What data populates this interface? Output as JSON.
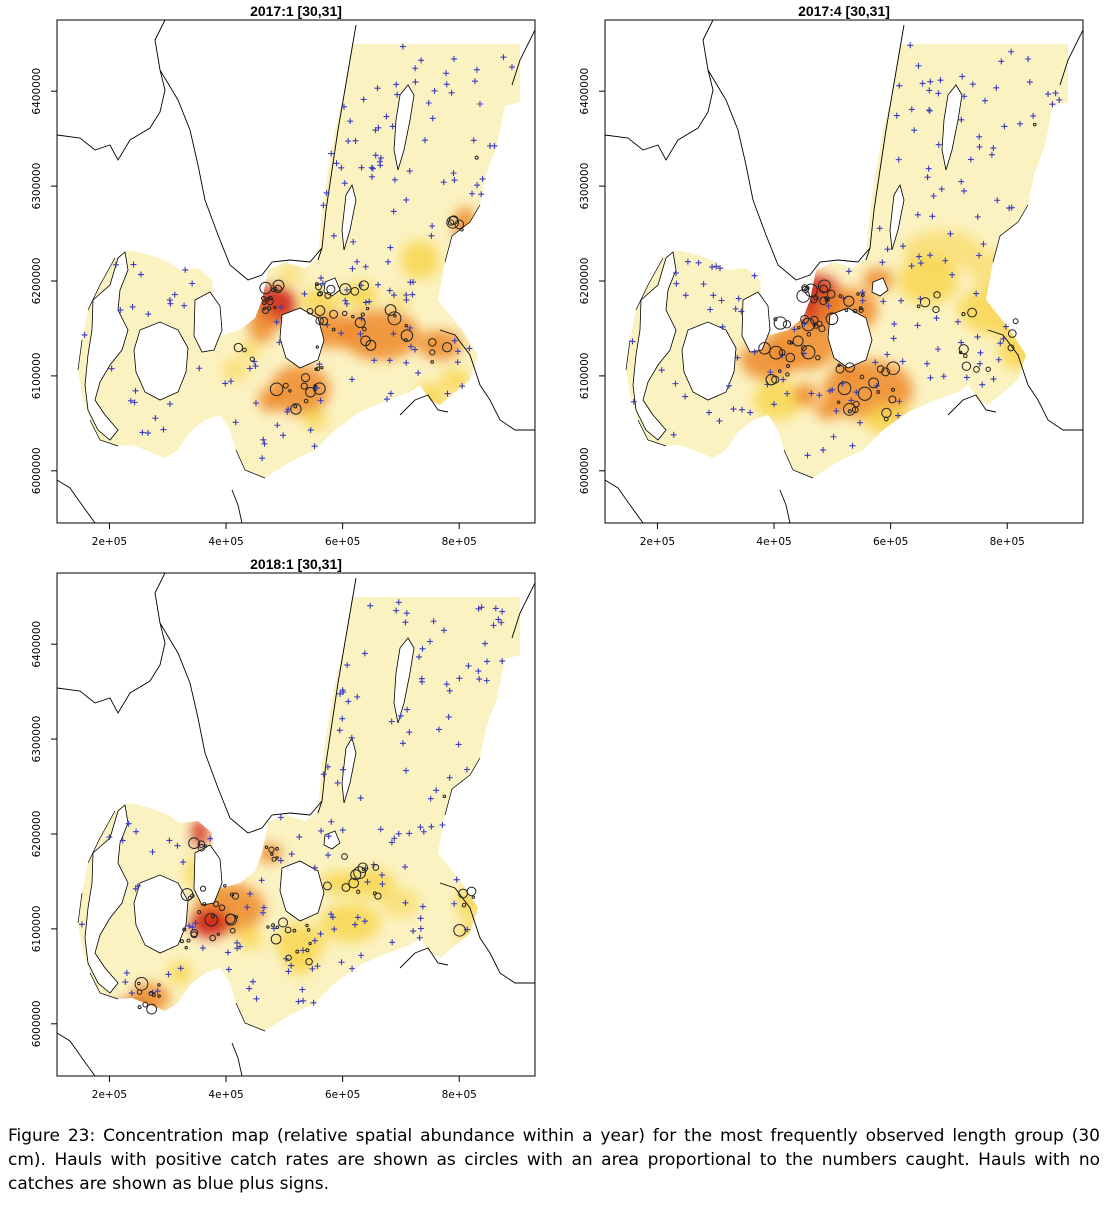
{
  "panels": [
    {
      "title": "2017:1 [30,31]",
      "variant": 0
    },
    {
      "title": "2017:4 [30,31]",
      "variant": 1
    },
    {
      "title": "2018:1 [30,31]",
      "variant": 2
    }
  ],
  "axes": {
    "x_ticks": [
      {
        "value": 200000,
        "label": "2e+05"
      },
      {
        "value": 400000,
        "label": "4e+05"
      },
      {
        "value": 600000,
        "label": "6e+05"
      },
      {
        "value": 800000,
        "label": "8e+05"
      }
    ],
    "y_ticks": [
      {
        "value": 6000000,
        "label": "6000000"
      },
      {
        "value": 6100000,
        "label": "6100000"
      },
      {
        "value": 6200000,
        "label": "6200000"
      },
      {
        "value": 6300000,
        "label": "6300000"
      },
      {
        "value": 6400000,
        "label": "6400000"
      }
    ],
    "x_range": [
      110000,
      930000
    ],
    "y_range": [
      5945000,
      6475000
    ]
  },
  "colors": {
    "low": "#fbf2c2",
    "mid": "#f7d44a",
    "high": "#ef8a2a",
    "peak": "#cf2316",
    "no_catch": "#3a3dbf",
    "positive_catch": "#222222"
  },
  "caption": "Figure 23: Concentration map (relative spatial abundance within a year) for the most frequently observed length group (30 cm). Hauls with positive catch rates are shown as circles with an area proportional to the numbers caught. Hauls with no catches are shown as blue plus signs."
}
